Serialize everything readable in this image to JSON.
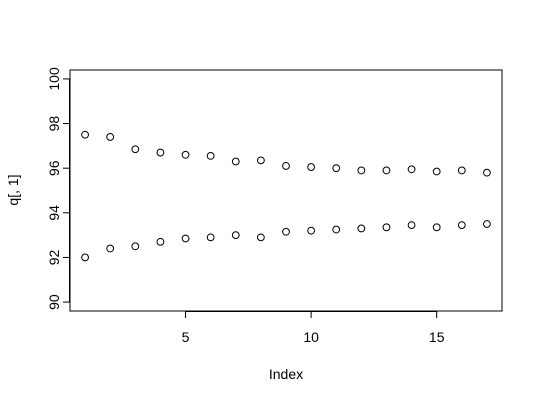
{
  "chart_data": {
    "type": "scatter",
    "xlabel": "Index",
    "ylabel": "q[, 1]",
    "xlim": [
      0.4,
      17.6
    ],
    "ylim": [
      89.6,
      100.4
    ],
    "x_ticks": [
      5,
      10,
      15
    ],
    "y_ticks": [
      90,
      92,
      94,
      96,
      98,
      100
    ],
    "x_tick_labels": [
      "5",
      "10",
      "15"
    ],
    "y_tick_labels": [
      "90",
      "92",
      "94",
      "96",
      "98",
      "100"
    ],
    "series": [
      {
        "x": [
          1,
          2,
          3,
          4,
          5,
          6,
          7,
          8,
          9,
          10,
          11,
          12,
          13,
          14,
          15,
          16,
          17
        ],
        "values": [
          97.5,
          97.4,
          96.85,
          96.7,
          96.6,
          96.55,
          96.3,
          96.35,
          96.1,
          96.05,
          96.0,
          95.9,
          95.9,
          95.95,
          95.85,
          95.9,
          95.8
        ]
      },
      {
        "x": [
          1,
          2,
          3,
          4,
          5,
          6,
          7,
          8,
          9,
          10,
          11,
          12,
          13,
          14,
          15,
          16,
          17
        ],
        "values": [
          92.0,
          92.4,
          92.5,
          92.7,
          92.85,
          92.9,
          93.0,
          92.9,
          93.15,
          93.2,
          93.25,
          93.3,
          93.35,
          93.45,
          93.35,
          93.45,
          93.5
        ]
      }
    ],
    "grid": false,
    "marker": "open-circle"
  }
}
